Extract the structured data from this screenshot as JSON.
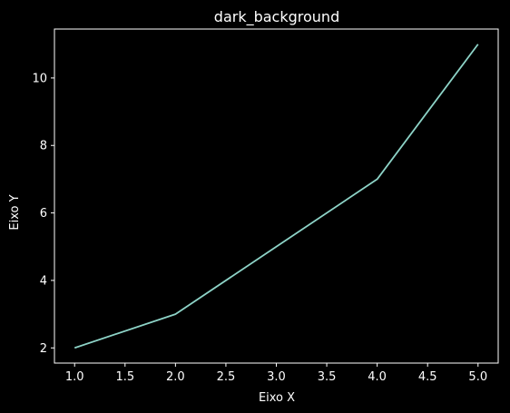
{
  "chart_data": {
    "type": "line",
    "title": "dark_background",
    "xlabel": "Eixo X",
    "ylabel": "Eixo Y",
    "series": [
      {
        "x": [
          1,
          2,
          3,
          4,
          5
        ],
        "y": [
          2,
          3,
          5,
          7,
          11
        ]
      }
    ],
    "xlim": [
      0.8,
      5.2
    ],
    "ylim": [
      1.55,
      11.45
    ],
    "xticks": [
      1.0,
      1.5,
      2.0,
      2.5,
      3.0,
      3.5,
      4.0,
      4.5,
      5.0
    ],
    "xtick_labels": [
      "1.0",
      "1.5",
      "2.0",
      "2.5",
      "3.0",
      "3.5",
      "4.0",
      "4.5",
      "5.0"
    ],
    "yticks": [
      2,
      4,
      6,
      8,
      10
    ],
    "ytick_labels": [
      "2",
      "4",
      "6",
      "8",
      "10"
    ],
    "grid": false,
    "colors": {
      "background": "#000000",
      "foreground": "#ffffff",
      "line": "#8dd3c7"
    }
  }
}
